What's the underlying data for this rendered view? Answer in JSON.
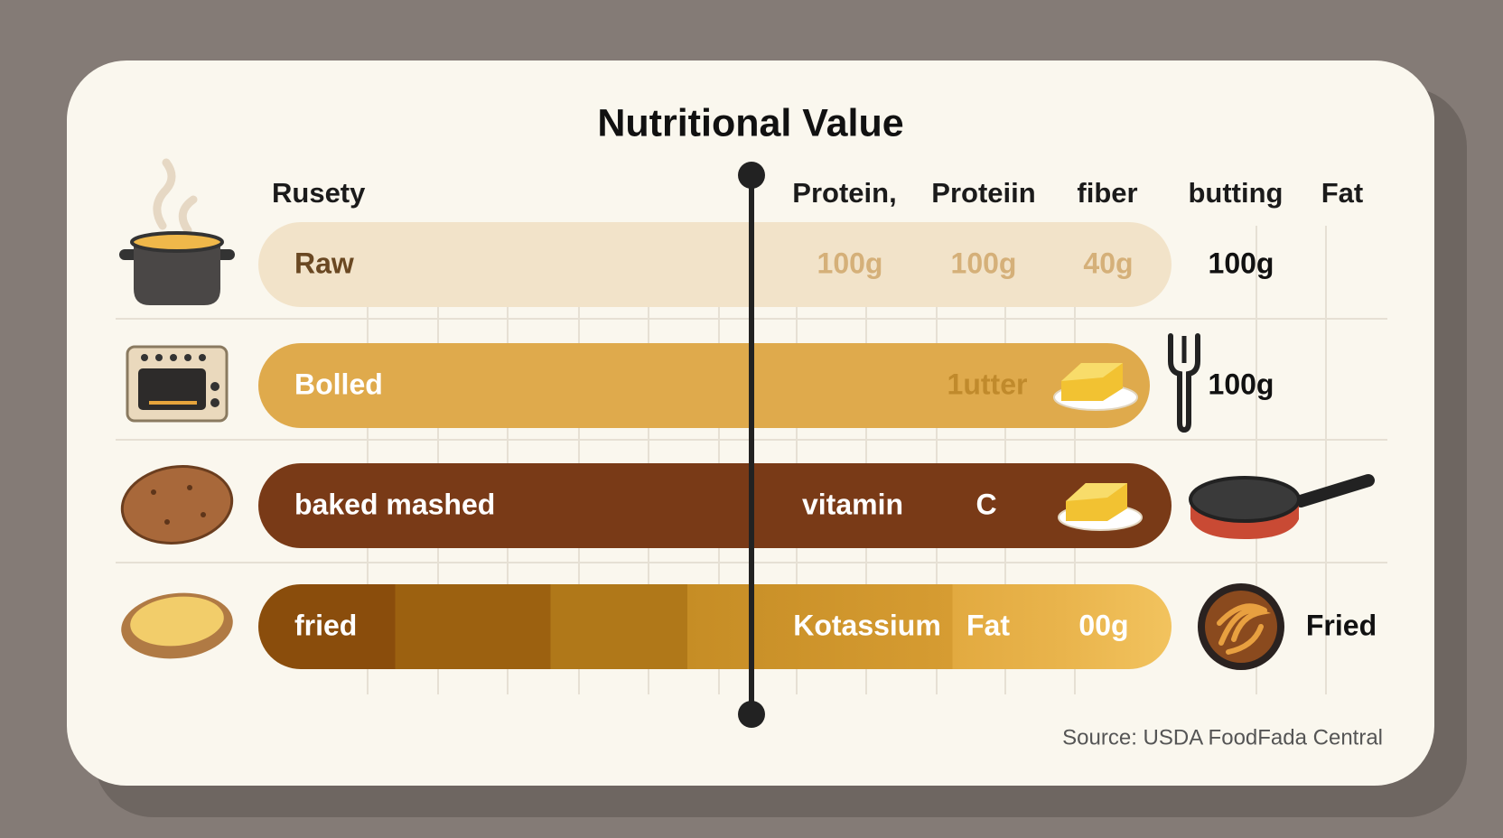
{
  "header": {
    "title": "Nutritional Value"
  },
  "columns": [
    "Rusety",
    "Protein,",
    "Proteiin",
    "fiber",
    "butting",
    "Fat"
  ],
  "rows": [
    {
      "label": "Raw",
      "cells": [
        "100g",
        "100g",
        "40g"
      ],
      "side": "100g"
    },
    {
      "label": "Bolled",
      "cells": [
        "1utter"
      ],
      "side": "100g"
    },
    {
      "label": "baked mashed",
      "cells": [
        "vitamin",
        "C"
      ]
    },
    {
      "label": "fried",
      "cells": [
        "Kotassium",
        "Fat",
        "00g"
      ],
      "side": "Fried"
    }
  ],
  "footer": {
    "source": "Source: USDA FoodFada Central"
  }
}
